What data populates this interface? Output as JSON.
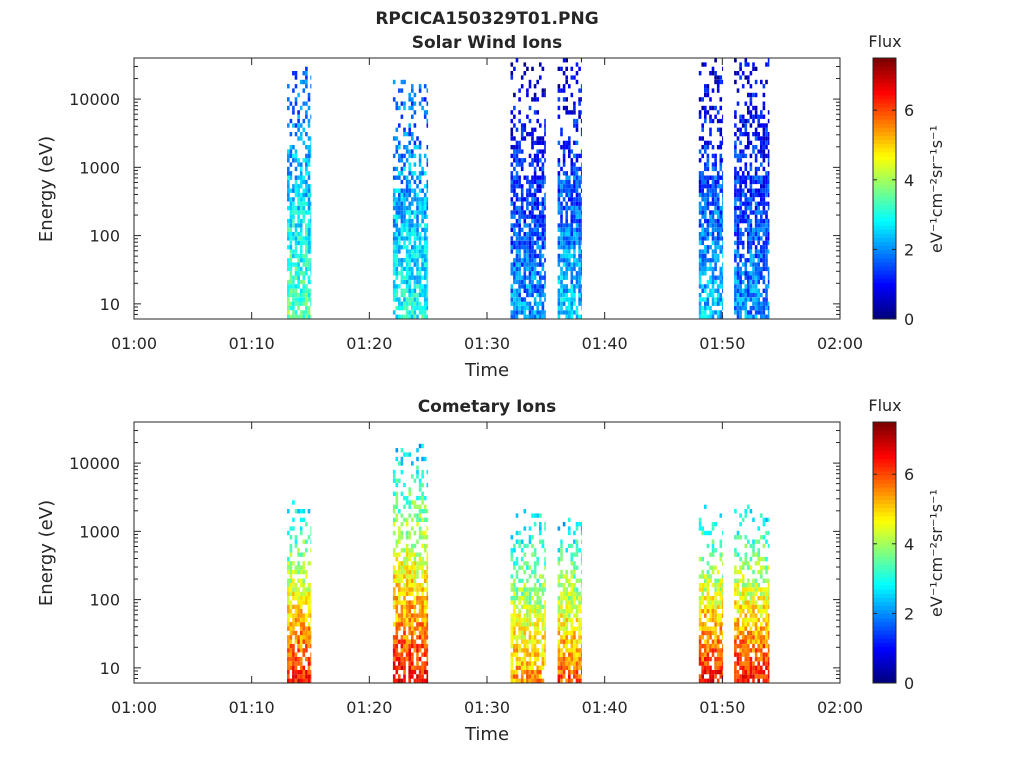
{
  "figure_title": "RPCICA150329T01.PNG",
  "chart_data": [
    {
      "type": "heatmap",
      "title": "Solar Wind Ions",
      "xlabel": "Time",
      "ylabel": "Energy (eV)",
      "x_ticks": [
        "01:00",
        "01:10",
        "01:20",
        "01:30",
        "01:40",
        "01:50",
        "02:00"
      ],
      "xlim": [
        "01:00",
        "02:00"
      ],
      "y_scale": "log",
      "y_ticks": [
        10,
        100,
        1000,
        10000
      ],
      "y_tick_labels": [
        "10",
        "100",
        "1000",
        "10000"
      ],
      "ylim": [
        6,
        40000
      ],
      "colorbar": {
        "label": "Flux",
        "units": "eV⁻¹cm⁻²sr⁻¹s⁻¹",
        "range": [
          0,
          7.5
        ],
        "ticks": [
          0,
          2,
          4,
          6
        ],
        "colormap": "jet"
      },
      "bursts": [
        {
          "start": "01:13",
          "end": "01:15",
          "e_max": 30000,
          "flux_low": 3.5,
          "flux_high": 1.5
        },
        {
          "start": "01:22",
          "end": "01:25",
          "e_max": 20000,
          "flux_low": 3.0,
          "flux_high": 1.5
        },
        {
          "start": "01:32",
          "end": "01:35",
          "e_max": 40000,
          "flux_low": 2.0,
          "flux_high": 0.5
        },
        {
          "start": "01:36",
          "end": "01:38",
          "e_max": 40000,
          "flux_low": 2.5,
          "flux_high": 0.5
        },
        {
          "start": "01:48",
          "end": "01:50",
          "e_max": 40000,
          "flux_low": 2.5,
          "flux_high": 0.5
        },
        {
          "start": "01:51",
          "end": "01:54",
          "e_max": 40000,
          "flux_low": 2.0,
          "flux_high": 0.6
        }
      ],
      "grid": false,
      "legend": "none"
    },
    {
      "type": "heatmap",
      "title": "Cometary Ions",
      "xlabel": "Time",
      "ylabel": "Energy (eV)",
      "x_ticks": [
        "01:00",
        "01:10",
        "01:20",
        "01:30",
        "01:40",
        "01:50",
        "02:00"
      ],
      "xlim": [
        "01:00",
        "02:00"
      ],
      "y_scale": "log",
      "y_ticks": [
        10,
        100,
        1000,
        10000
      ],
      "y_tick_labels": [
        "10",
        "100",
        "1000",
        "10000"
      ],
      "ylim": [
        6,
        40000
      ],
      "colorbar": {
        "label": "Flux",
        "units": "eV⁻¹cm⁻²sr⁻¹s⁻¹",
        "range": [
          0,
          7.5
        ],
        "ticks": [
          0,
          2,
          4,
          6
        ],
        "colormap": "jet"
      },
      "bursts": [
        {
          "start": "01:13",
          "end": "01:15",
          "e_max": 3000,
          "flux_low": 6.5,
          "flux_high": 2.5
        },
        {
          "start": "01:22",
          "end": "01:25",
          "e_max": 20000,
          "flux_low": 6.5,
          "flux_high": 2.5
        },
        {
          "start": "01:32",
          "end": "01:35",
          "e_max": 2000,
          "flux_low": 5.5,
          "flux_high": 2.5
        },
        {
          "start": "01:36",
          "end": "01:38",
          "e_max": 1500,
          "flux_low": 6.0,
          "flux_high": 2.5
        },
        {
          "start": "01:48",
          "end": "01:50",
          "e_max": 2500,
          "flux_low": 6.5,
          "flux_high": 2.5
        },
        {
          "start": "01:51",
          "end": "01:54",
          "e_max": 2500,
          "flux_low": 6.5,
          "flux_high": 2.5
        }
      ],
      "grid": false,
      "legend": "none"
    }
  ]
}
